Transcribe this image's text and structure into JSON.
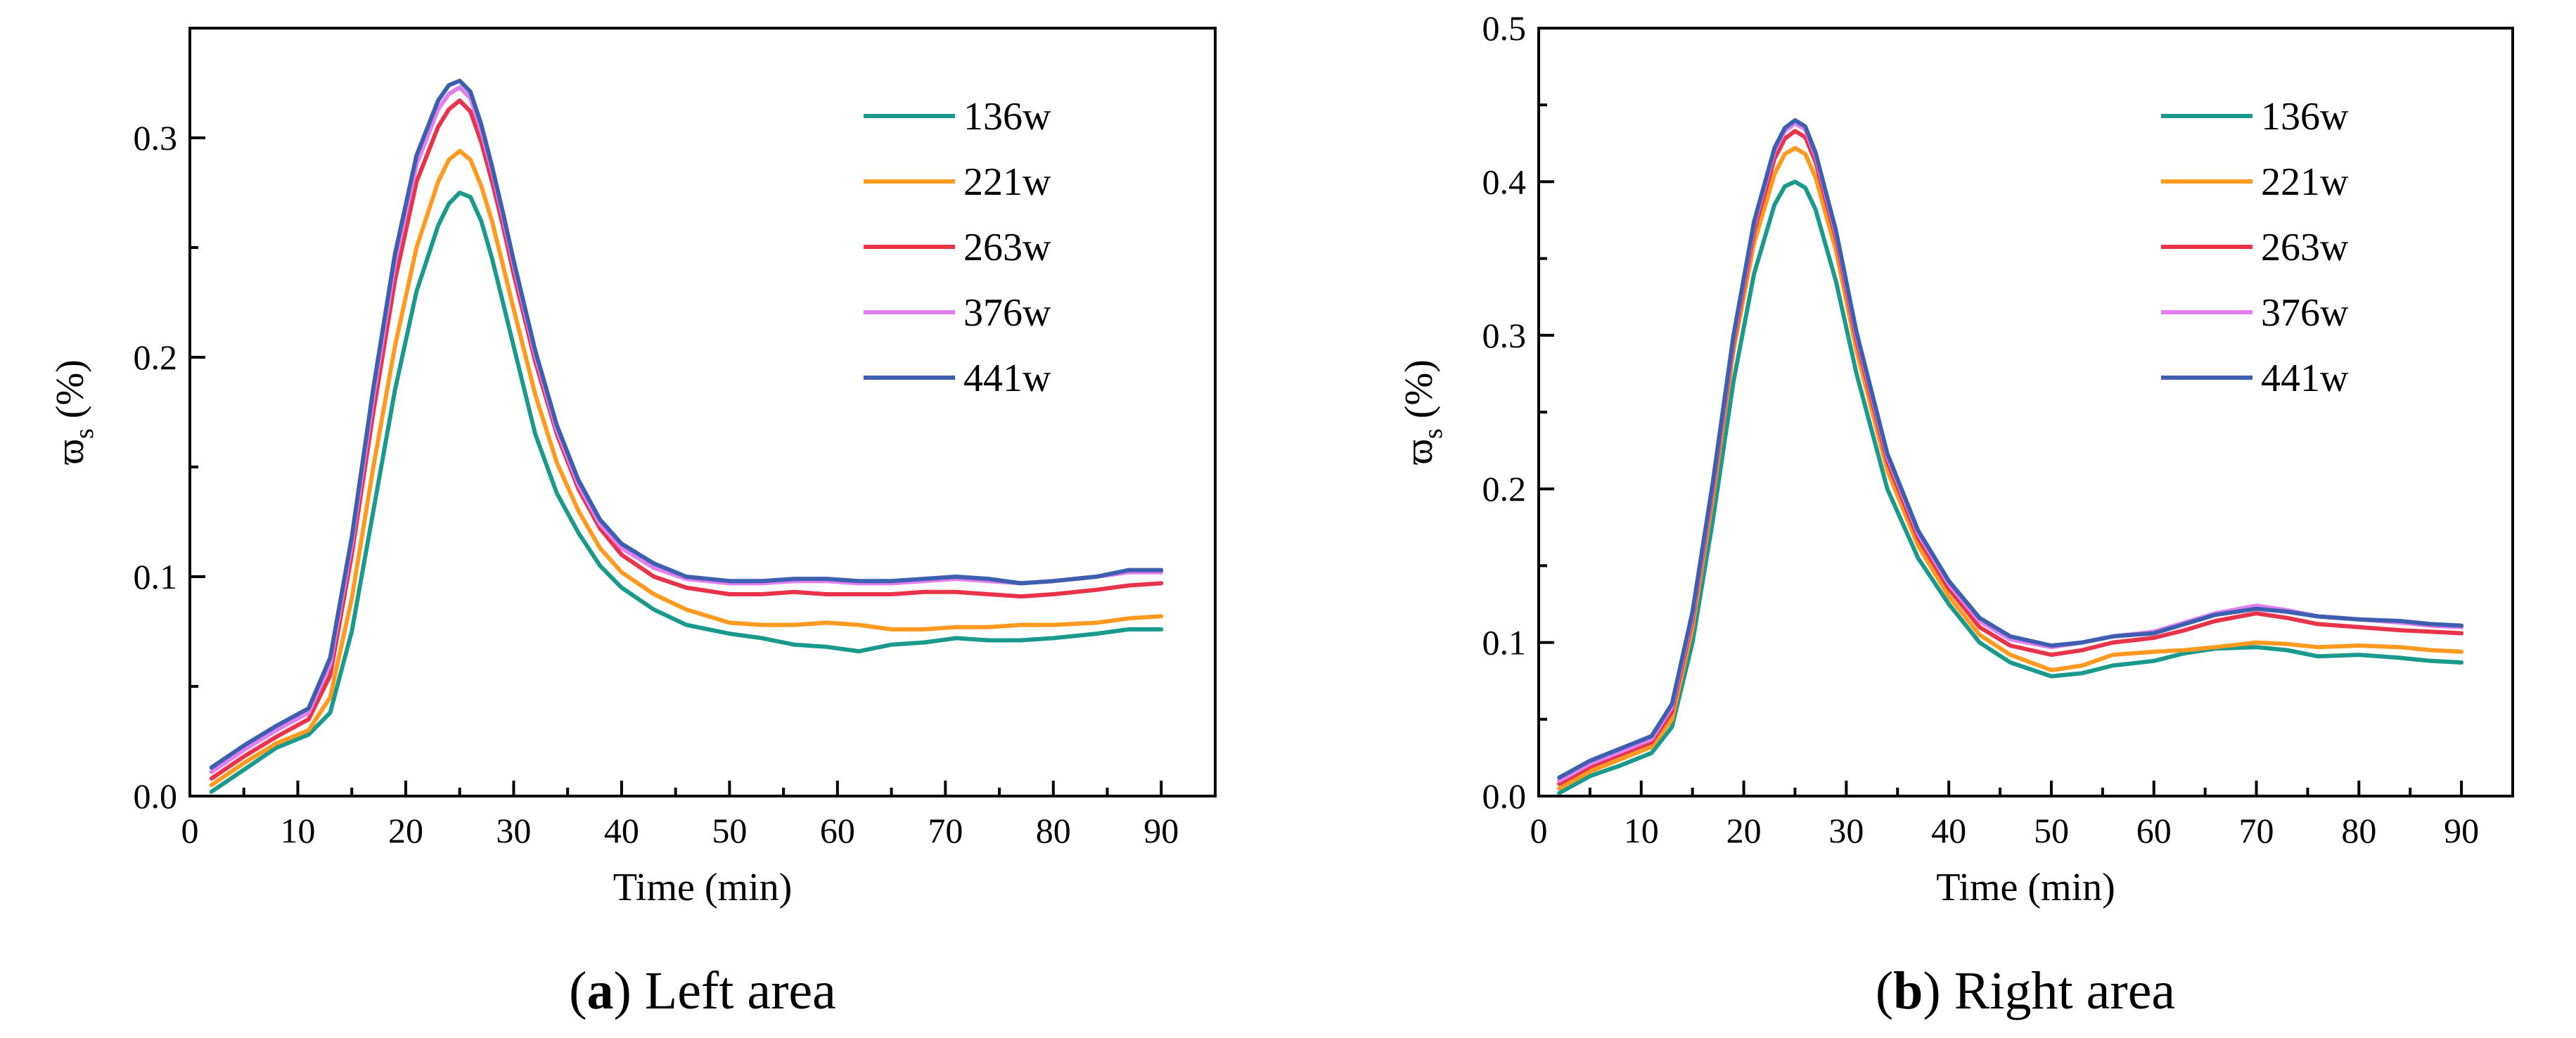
{
  "chart_data": [
    {
      "type": "line",
      "caption": {
        "letter": "a",
        "text": "Left area"
      },
      "xlabel": "Time (min)",
      "ylabel_main": "ϖ",
      "ylabel_sub": "s",
      "ylabel_unit": " (%)",
      "xlim": [
        0,
        95
      ],
      "ylim": [
        0,
        0.35
      ],
      "xticks": [
        0,
        10,
        20,
        30,
        40,
        50,
        60,
        70,
        80,
        90
      ],
      "xtick_labels": [
        "0",
        "10",
        "20",
        "30",
        "40",
        "50",
        "60",
        "70",
        "80",
        "90"
      ],
      "yticks": [
        0,
        0.1,
        0.2,
        0.3
      ],
      "ytick_labels": [
        "0.0",
        "0.1",
        "0.2",
        "0.3"
      ],
      "grid": false,
      "legend_position": "top-right",
      "series": [
        {
          "name": "136w",
          "color": "#1a9a8c",
          "x": [
            2,
            5,
            8,
            11,
            13,
            15,
            17,
            19,
            21,
            23,
            24,
            25,
            26,
            27,
            28,
            29,
            30,
            32,
            34,
            36,
            38,
            40,
            43,
            46,
            50,
            53,
            56,
            59,
            62,
            65,
            68,
            71,
            74,
            77,
            80,
            84,
            87,
            90
          ],
          "y": [
            0.002,
            0.012,
            0.022,
            0.028,
            0.038,
            0.075,
            0.13,
            0.185,
            0.23,
            0.26,
            0.27,
            0.275,
            0.273,
            0.262,
            0.245,
            0.225,
            0.205,
            0.165,
            0.138,
            0.12,
            0.105,
            0.095,
            0.085,
            0.078,
            0.074,
            0.072,
            0.069,
            0.068,
            0.066,
            0.069,
            0.07,
            0.072,
            0.071,
            0.071,
            0.072,
            0.074,
            0.076,
            0.076
          ]
        },
        {
          "name": "221w",
          "color": "#ff9a1e",
          "x": [
            2,
            5,
            8,
            11,
            13,
            15,
            17,
            19,
            21,
            23,
            24,
            25,
            26,
            27,
            28,
            29,
            30,
            32,
            34,
            36,
            38,
            40,
            43,
            46,
            50,
            53,
            56,
            59,
            62,
            65,
            68,
            71,
            74,
            77,
            80,
            84,
            87,
            90
          ],
          "y": [
            0.005,
            0.015,
            0.024,
            0.03,
            0.045,
            0.09,
            0.15,
            0.205,
            0.25,
            0.28,
            0.29,
            0.294,
            0.29,
            0.278,
            0.262,
            0.242,
            0.222,
            0.183,
            0.152,
            0.13,
            0.113,
            0.102,
            0.092,
            0.085,
            0.079,
            0.078,
            0.078,
            0.079,
            0.078,
            0.076,
            0.076,
            0.077,
            0.077,
            0.078,
            0.078,
            0.079,
            0.081,
            0.082
          ]
        },
        {
          "name": "263w",
          "color": "#e8334a",
          "x": [
            2,
            5,
            8,
            11,
            13,
            15,
            17,
            19,
            21,
            23,
            24,
            25,
            26,
            27,
            28,
            29,
            30,
            32,
            34,
            36,
            38,
            40,
            43,
            46,
            50,
            53,
            56,
            59,
            62,
            65,
            68,
            71,
            74,
            77,
            80,
            84,
            87,
            90
          ],
          "y": [
            0.008,
            0.018,
            0.027,
            0.035,
            0.055,
            0.11,
            0.175,
            0.235,
            0.28,
            0.305,
            0.313,
            0.317,
            0.312,
            0.298,
            0.28,
            0.26,
            0.238,
            0.198,
            0.165,
            0.14,
            0.122,
            0.11,
            0.1,
            0.095,
            0.092,
            0.092,
            0.093,
            0.092,
            0.092,
            0.092,
            0.093,
            0.093,
            0.092,
            0.091,
            0.092,
            0.094,
            0.096,
            0.097
          ]
        },
        {
          "name": "376w",
          "color": "#e27ef0",
          "x": [
            2,
            5,
            8,
            11,
            13,
            15,
            17,
            19,
            21,
            23,
            24,
            25,
            26,
            27,
            28,
            29,
            30,
            32,
            34,
            36,
            38,
            40,
            43,
            46,
            50,
            53,
            56,
            59,
            62,
            65,
            68,
            71,
            74,
            77,
            80,
            84,
            87,
            90
          ],
          "y": [
            0.011,
            0.021,
            0.03,
            0.038,
            0.06,
            0.115,
            0.182,
            0.243,
            0.288,
            0.313,
            0.32,
            0.323,
            0.318,
            0.303,
            0.285,
            0.264,
            0.242,
            0.201,
            0.167,
            0.142,
            0.124,
            0.113,
            0.104,
            0.099,
            0.097,
            0.097,
            0.098,
            0.098,
            0.097,
            0.097,
            0.098,
            0.099,
            0.098,
            0.097,
            0.098,
            0.1,
            0.102,
            0.102
          ]
        },
        {
          "name": "441w",
          "color": "#3d5fb0",
          "x": [
            2,
            5,
            8,
            11,
            13,
            15,
            17,
            19,
            21,
            23,
            24,
            25,
            26,
            27,
            28,
            29,
            30,
            32,
            34,
            36,
            38,
            40,
            43,
            46,
            50,
            53,
            56,
            59,
            62,
            65,
            68,
            71,
            74,
            77,
            80,
            84,
            87,
            90
          ],
          "y": [
            0.013,
            0.023,
            0.032,
            0.04,
            0.063,
            0.118,
            0.186,
            0.247,
            0.292,
            0.317,
            0.324,
            0.326,
            0.321,
            0.306,
            0.287,
            0.266,
            0.244,
            0.203,
            0.169,
            0.144,
            0.126,
            0.115,
            0.106,
            0.1,
            0.098,
            0.098,
            0.099,
            0.099,
            0.098,
            0.098,
            0.099,
            0.1,
            0.099,
            0.097,
            0.098,
            0.1,
            0.103,
            0.103
          ]
        }
      ]
    },
    {
      "type": "line",
      "caption": {
        "letter": "b",
        "text": "Right area"
      },
      "xlabel": "Time (min)",
      "ylabel_main": "ϖ",
      "ylabel_sub": "s",
      "ylabel_unit": " (%)",
      "xlim": [
        0,
        95
      ],
      "ylim": [
        0,
        0.5
      ],
      "xticks": [
        0,
        10,
        20,
        30,
        40,
        50,
        60,
        70,
        80,
        90
      ],
      "xtick_labels": [
        "0",
        "10",
        "20",
        "30",
        "40",
        "50",
        "60",
        "70",
        "80",
        "90"
      ],
      "yticks": [
        0,
        0.1,
        0.2,
        0.3,
        0.4,
        0.5
      ],
      "ytick_labels": [
        "0.0",
        "0.1",
        "0.2",
        "0.3",
        "0.4",
        "0.5"
      ],
      "grid": false,
      "legend_position": "top-right",
      "series": [
        {
          "name": "136w",
          "color": "#1a9a8c",
          "x": [
            2,
            5,
            8,
            11,
            13,
            15,
            17,
            19,
            21,
            23,
            24,
            25,
            26,
            27,
            29,
            31,
            34,
            37,
            40,
            43,
            46,
            50,
            53,
            56,
            60,
            63,
            66,
            70,
            73,
            76,
            80,
            84,
            87,
            90
          ],
          "y": [
            0.002,
            0.013,
            0.02,
            0.028,
            0.045,
            0.1,
            0.18,
            0.27,
            0.34,
            0.385,
            0.397,
            0.4,
            0.396,
            0.382,
            0.335,
            0.275,
            0.2,
            0.155,
            0.125,
            0.1,
            0.087,
            0.078,
            0.08,
            0.085,
            0.088,
            0.093,
            0.096,
            0.097,
            0.095,
            0.091,
            0.092,
            0.09,
            0.088,
            0.087
          ]
        },
        {
          "name": "221w",
          "color": "#ff9a1e",
          "x": [
            2,
            5,
            8,
            11,
            13,
            15,
            17,
            19,
            21,
            23,
            24,
            25,
            26,
            27,
            29,
            31,
            34,
            37,
            40,
            43,
            46,
            50,
            53,
            56,
            60,
            63,
            66,
            70,
            73,
            76,
            80,
            84,
            87,
            90
          ],
          "y": [
            0.005,
            0.016,
            0.024,
            0.032,
            0.05,
            0.11,
            0.195,
            0.29,
            0.36,
            0.405,
            0.418,
            0.422,
            0.418,
            0.403,
            0.355,
            0.29,
            0.212,
            0.163,
            0.13,
            0.105,
            0.092,
            0.082,
            0.085,
            0.092,
            0.094,
            0.095,
            0.097,
            0.1,
            0.099,
            0.097,
            0.098,
            0.097,
            0.095,
            0.094
          ]
        },
        {
          "name": "263w",
          "color": "#e8334a",
          "x": [
            2,
            5,
            8,
            11,
            13,
            15,
            17,
            19,
            21,
            23,
            24,
            25,
            26,
            27,
            29,
            31,
            34,
            37,
            40,
            43,
            46,
            50,
            53,
            56,
            60,
            63,
            66,
            70,
            73,
            76,
            80,
            84,
            87,
            90
          ],
          "y": [
            0.008,
            0.019,
            0.027,
            0.035,
            0.055,
            0.115,
            0.2,
            0.295,
            0.368,
            0.415,
            0.428,
            0.433,
            0.429,
            0.413,
            0.363,
            0.297,
            0.218,
            0.168,
            0.135,
            0.11,
            0.098,
            0.092,
            0.095,
            0.1,
            0.103,
            0.108,
            0.114,
            0.119,
            0.116,
            0.112,
            0.11,
            0.108,
            0.107,
            0.106
          ]
        },
        {
          "name": "376w",
          "color": "#e27ef0",
          "x": [
            2,
            5,
            8,
            11,
            13,
            15,
            17,
            19,
            21,
            23,
            24,
            25,
            26,
            27,
            29,
            31,
            34,
            37,
            40,
            43,
            46,
            50,
            53,
            56,
            60,
            63,
            66,
            70,
            73,
            76,
            80,
            84,
            87,
            90
          ],
          "y": [
            0.01,
            0.021,
            0.029,
            0.037,
            0.058,
            0.118,
            0.203,
            0.298,
            0.372,
            0.42,
            0.433,
            0.438,
            0.434,
            0.417,
            0.366,
            0.3,
            0.221,
            0.171,
            0.138,
            0.114,
            0.102,
            0.097,
            0.1,
            0.104,
            0.107,
            0.113,
            0.119,
            0.124,
            0.121,
            0.117,
            0.115,
            0.113,
            0.111,
            0.11
          ]
        },
        {
          "name": "441w",
          "color": "#3d5fb0",
          "x": [
            2,
            5,
            8,
            11,
            13,
            15,
            17,
            19,
            21,
            23,
            24,
            25,
            26,
            27,
            29,
            31,
            34,
            37,
            40,
            43,
            46,
            50,
            53,
            56,
            60,
            63,
            66,
            70,
            73,
            76,
            80,
            84,
            87,
            90
          ],
          "y": [
            0.012,
            0.023,
            0.031,
            0.039,
            0.06,
            0.12,
            0.205,
            0.3,
            0.374,
            0.422,
            0.435,
            0.44,
            0.436,
            0.419,
            0.368,
            0.302,
            0.223,
            0.173,
            0.14,
            0.116,
            0.104,
            0.098,
            0.1,
            0.104,
            0.106,
            0.112,
            0.118,
            0.122,
            0.12,
            0.117,
            0.115,
            0.114,
            0.112,
            0.111
          ]
        }
      ]
    }
  ]
}
